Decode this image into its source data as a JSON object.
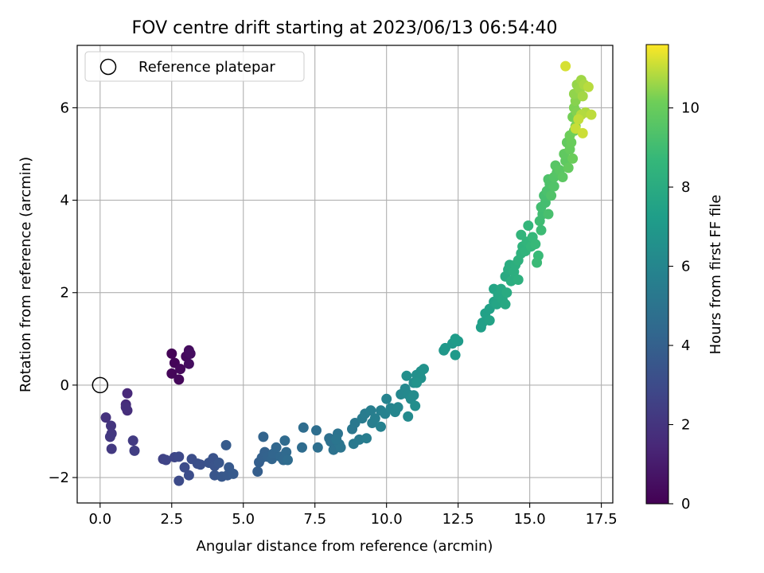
{
  "chart_data": {
    "type": "scatter",
    "title": "FOV centre drift starting at 2023/06/13 06:54:40",
    "xlabel": "Angular distance from reference (arcmin)",
    "ylabel": "Rotation from reference (arcmin)",
    "colorbar_label": "Hours from first FF file",
    "xlim": [
      -0.8,
      17.9
    ],
    "ylim": [
      -2.55,
      7.35
    ],
    "x_ticks": [
      0.0,
      2.5,
      5.0,
      7.5,
      10.0,
      12.5,
      15.0,
      17.5
    ],
    "x_tick_labels": [
      "0.0",
      "2.5",
      "5.0",
      "7.5",
      "10.0",
      "12.5",
      "15.0",
      "17.5"
    ],
    "y_ticks": [
      -2,
      0,
      2,
      4,
      6
    ],
    "y_tick_labels": [
      "−2",
      "0",
      "2",
      "4",
      "6"
    ],
    "color_range": [
      0,
      11.6
    ],
    "colorbar_ticks": [
      0,
      2,
      4,
      6,
      8,
      10
    ],
    "colorbar_tick_labels": [
      "0",
      "2",
      "4",
      "6",
      "8",
      "10"
    ],
    "colormap": "viridis",
    "grid": true,
    "legend_position": "top-left",
    "legend": [
      {
        "label": "Reference platepar",
        "marker": "open-circle"
      }
    ],
    "reference": {
      "x": 0,
      "y": 0
    },
    "points": [
      [
        2.5,
        0.68,
        0.1
      ],
      [
        2.6,
        0.48,
        0.15
      ],
      [
        2.5,
        0.25,
        0.2
      ],
      [
        2.75,
        0.12,
        0.25
      ],
      [
        2.8,
        0.35,
        0.3
      ],
      [
        3.0,
        0.62,
        0.35
      ],
      [
        3.1,
        0.75,
        0.4
      ],
      [
        3.1,
        0.46,
        0.45
      ],
      [
        3.15,
        0.68,
        0.5
      ],
      [
        0.95,
        -0.18,
        1.5
      ],
      [
        0.9,
        -0.42,
        1.6
      ],
      [
        0.95,
        -0.55,
        1.7
      ],
      [
        0.9,
        -0.48,
        1.75
      ],
      [
        0.2,
        -0.7,
        1.9
      ],
      [
        0.38,
        -0.88,
        2.0
      ],
      [
        0.4,
        -1.05,
        2.1
      ],
      [
        0.35,
        -1.12,
        2.15
      ],
      [
        0.4,
        -1.38,
        2.2
      ],
      [
        1.15,
        -1.2,
        2.3
      ],
      [
        1.2,
        -1.42,
        2.4
      ],
      [
        2.2,
        -1.6,
        2.6
      ],
      [
        2.3,
        -1.62,
        2.7
      ],
      [
        2.6,
        -1.56,
        2.8
      ],
      [
        2.75,
        -1.55,
        2.9
      ],
      [
        2.75,
        -2.07,
        3.0
      ],
      [
        2.95,
        -1.78,
        3.05
      ],
      [
        3.1,
        -1.95,
        3.1
      ],
      [
        3.2,
        -1.6,
        3.15
      ],
      [
        3.4,
        -1.7,
        3.2
      ],
      [
        3.5,
        -1.72,
        3.25
      ],
      [
        3.8,
        -1.68,
        3.3
      ],
      [
        3.95,
        -1.58,
        3.35
      ],
      [
        4.0,
        -1.75,
        3.4
      ],
      [
        4.0,
        -1.95,
        3.45
      ],
      [
        4.15,
        -1.68,
        3.5
      ],
      [
        4.25,
        -1.98,
        3.55
      ],
      [
        4.45,
        -1.95,
        3.6
      ],
      [
        4.5,
        -1.78,
        3.65
      ],
      [
        4.65,
        -1.92,
        3.7
      ],
      [
        4.4,
        -1.3,
        3.75
      ],
      [
        5.5,
        -1.87,
        3.9
      ],
      [
        5.55,
        -1.67,
        3.95
      ],
      [
        5.65,
        -1.57,
        4.0
      ],
      [
        5.75,
        -1.45,
        4.05
      ],
      [
        5.85,
        -1.55,
        4.1
      ],
      [
        5.7,
        -1.12,
        4.15
      ],
      [
        6.0,
        -1.6,
        4.2
      ],
      [
        6.05,
        -1.48,
        4.25
      ],
      [
        6.15,
        -1.35,
        4.3
      ],
      [
        6.3,
        -1.55,
        4.35
      ],
      [
        6.4,
        -1.62,
        4.4
      ],
      [
        6.5,
        -1.45,
        4.45
      ],
      [
        6.45,
        -1.2,
        4.5
      ],
      [
        6.55,
        -1.62,
        4.55
      ],
      [
        7.05,
        -1.35,
        4.6
      ],
      [
        7.1,
        -0.92,
        4.65
      ],
      [
        7.55,
        -0.98,
        4.7
      ],
      [
        7.6,
        -1.35,
        4.75
      ],
      [
        8.0,
        -1.15,
        4.8
      ],
      [
        8.05,
        -1.22,
        4.85
      ],
      [
        8.15,
        -1.4,
        4.9
      ],
      [
        8.3,
        -1.05,
        4.95
      ],
      [
        8.35,
        -1.28,
        5.0
      ],
      [
        8.4,
        -1.35,
        5.05
      ],
      [
        8.25,
        -1.18,
        5.1
      ],
      [
        8.8,
        -0.95,
        5.2
      ],
      [
        8.9,
        -0.82,
        5.25
      ],
      [
        8.85,
        -1.27,
        5.3
      ],
      [
        9.05,
        -1.18,
        5.35
      ],
      [
        9.15,
        -0.72,
        5.4
      ],
      [
        9.25,
        -0.62,
        5.45
      ],
      [
        9.3,
        -1.15,
        5.5
      ],
      [
        9.45,
        -0.55,
        5.55
      ],
      [
        9.5,
        -0.82,
        5.6
      ],
      [
        9.6,
        -0.72,
        5.65
      ],
      [
        9.8,
        -0.55,
        5.7
      ],
      [
        9.8,
        -0.9,
        5.75
      ],
      [
        9.95,
        -0.62,
        5.8
      ],
      [
        10.0,
        -0.3,
        5.85
      ],
      [
        10.15,
        -0.5,
        5.9
      ],
      [
        10.3,
        -0.58,
        5.95
      ],
      [
        10.4,
        -0.48,
        6.0
      ],
      [
        10.5,
        -0.2,
        6.05
      ],
      [
        10.65,
        -0.08,
        6.1
      ],
      [
        10.75,
        -0.2,
        6.15
      ],
      [
        10.75,
        -0.68,
        6.2
      ],
      [
        10.85,
        -0.3,
        6.25
      ],
      [
        10.95,
        -0.22,
        6.3
      ],
      [
        10.95,
        0.05,
        6.35
      ],
      [
        11.0,
        -0.45,
        6.4
      ],
      [
        10.7,
        0.2,
        6.45
      ],
      [
        11.05,
        0.22,
        6.5
      ],
      [
        11.2,
        0.3,
        6.55
      ],
      [
        11.2,
        0.15,
        6.6
      ],
      [
        11.3,
        0.35,
        6.65
      ],
      [
        11.05,
        0.05,
        6.7
      ],
      [
        12.0,
        0.75,
        6.9
      ],
      [
        12.05,
        0.8,
        6.95
      ],
      [
        12.3,
        0.9,
        7.0
      ],
      [
        12.4,
        0.65,
        7.05
      ],
      [
        12.5,
        0.95,
        7.1
      ],
      [
        12.4,
        1.0,
        7.15
      ],
      [
        13.3,
        1.25,
        7.3
      ],
      [
        13.35,
        1.35,
        7.35
      ],
      [
        13.45,
        1.55,
        7.4
      ],
      [
        13.6,
        1.65,
        7.45
      ],
      [
        13.6,
        1.4,
        7.5
      ],
      [
        13.75,
        1.8,
        7.55
      ],
      [
        13.75,
        2.08,
        7.6
      ],
      [
        13.85,
        1.75,
        7.65
      ],
      [
        13.9,
        1.95,
        7.7
      ],
      [
        14.0,
        2.08,
        7.75
      ],
      [
        14.05,
        1.85,
        7.8
      ],
      [
        14.15,
        1.75,
        7.85
      ],
      [
        14.15,
        2.35,
        7.9
      ],
      [
        14.2,
        2.0,
        7.95
      ],
      [
        14.25,
        2.5,
        8.0
      ],
      [
        14.3,
        2.6,
        8.05
      ],
      [
        14.35,
        2.25,
        8.1
      ],
      [
        14.45,
        2.45,
        8.15
      ],
      [
        14.5,
        2.6,
        8.2
      ],
      [
        14.6,
        2.28,
        8.25
      ],
      [
        14.6,
        2.7,
        8.3
      ],
      [
        14.7,
        2.85,
        8.35
      ],
      [
        14.75,
        3.0,
        8.4
      ],
      [
        14.85,
        2.9,
        8.45
      ],
      [
        14.9,
        3.1,
        8.5
      ],
      [
        14.7,
        3.25,
        8.55
      ],
      [
        14.95,
        3.45,
        8.6
      ],
      [
        15.05,
        3.0,
        8.65
      ],
      [
        15.1,
        3.2,
        8.7
      ],
      [
        15.2,
        3.05,
        8.75
      ],
      [
        15.3,
        2.8,
        8.8
      ],
      [
        15.25,
        2.65,
        8.85
      ],
      [
        15.4,
        3.35,
        8.9
      ],
      [
        15.35,
        3.55,
        8.95
      ],
      [
        15.45,
        3.7,
        9.0
      ],
      [
        15.4,
        3.85,
        9.05
      ],
      [
        15.55,
        3.95,
        9.1
      ],
      [
        15.5,
        4.1,
        9.15
      ],
      [
        15.65,
        3.7,
        9.2
      ],
      [
        15.6,
        4.2,
        9.25
      ],
      [
        15.7,
        4.35,
        9.3
      ],
      [
        15.65,
        4.45,
        9.35
      ],
      [
        15.75,
        4.1,
        9.4
      ],
      [
        15.85,
        4.3,
        9.45
      ],
      [
        15.85,
        4.5,
        9.5
      ],
      [
        15.95,
        4.6,
        9.55
      ],
      [
        15.9,
        4.75,
        9.6
      ],
      [
        16.05,
        4.65,
        9.65
      ],
      [
        16.15,
        4.5,
        9.7
      ],
      [
        16.25,
        4.85,
        9.75
      ],
      [
        16.2,
        5.0,
        9.8
      ],
      [
        16.3,
        5.25,
        9.85
      ],
      [
        16.35,
        4.7,
        9.9
      ],
      [
        16.4,
        5.1,
        9.95
      ],
      [
        16.45,
        5.25,
        10.0
      ],
      [
        16.5,
        4.9,
        10.05
      ],
      [
        16.4,
        5.4,
        10.1
      ],
      [
        16.55,
        5.5,
        10.15
      ],
      [
        16.5,
        5.8,
        10.2
      ],
      [
        16.6,
        5.6,
        10.25
      ],
      [
        16.55,
        6.0,
        10.3
      ],
      [
        16.65,
        5.9,
        10.35
      ],
      [
        16.6,
        6.15,
        10.4
      ],
      [
        16.7,
        6.3,
        10.45
      ],
      [
        16.55,
        6.3,
        10.5
      ],
      [
        16.65,
        6.5,
        10.55
      ],
      [
        16.75,
        6.4,
        10.6
      ],
      [
        16.8,
        6.6,
        10.65
      ],
      [
        16.85,
        6.25,
        10.7
      ],
      [
        16.9,
        6.5,
        10.75
      ],
      [
        16.95,
        5.9,
        10.8
      ],
      [
        16.8,
        5.85,
        10.85
      ],
      [
        17.05,
        6.45,
        10.9
      ],
      [
        17.15,
        5.85,
        10.95
      ],
      [
        16.7,
        5.75,
        11.0
      ],
      [
        16.6,
        5.55,
        11.05
      ],
      [
        16.85,
        5.45,
        11.1
      ],
      [
        16.25,
        6.9,
        11.2
      ]
    ]
  }
}
